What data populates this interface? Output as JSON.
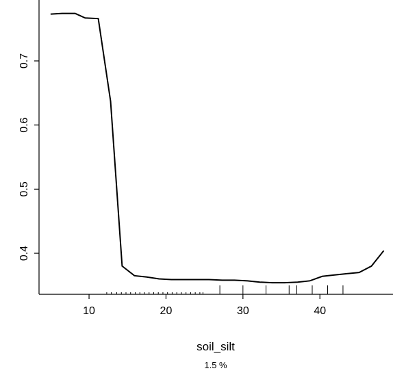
{
  "chart_data": {
    "type": "line",
    "xlabel": "soil_silt",
    "ylabel": "",
    "subtitle": "1.5 %",
    "xlim": [
      3.5,
      49.5
    ],
    "ylim": [
      0.336,
      0.795
    ],
    "x_ticks": [
      10,
      20,
      30,
      40
    ],
    "y_ticks": [
      0.4,
      0.5,
      0.6,
      0.7
    ],
    "y_tick_labels": [
      "0.4",
      "0.5",
      "0.6",
      "0.7"
    ],
    "x_tick_labels": [
      "10",
      "20",
      "30",
      "40"
    ],
    "series": [
      {
        "x": [
          5.0,
          6.5,
          8.2,
          9.5,
          11.2,
          12.8,
          14.3,
          15.9,
          17.5,
          19.1,
          20.7,
          22.4,
          24.0,
          25.6,
          27.3,
          28.9,
          30.6,
          32.2,
          33.8,
          35.4,
          37.1,
          38.7,
          40.3,
          41.8,
          43.4,
          45.1,
          46.7,
          48.3
        ],
        "y": [
          0.773,
          0.774,
          0.774,
          0.767,
          0.766,
          0.637,
          0.38,
          0.365,
          0.363,
          0.36,
          0.359,
          0.359,
          0.359,
          0.359,
          0.358,
          0.358,
          0.357,
          0.355,
          0.354,
          0.354,
          0.355,
          0.357,
          0.364,
          0.366,
          0.368,
          0.37,
          0.38,
          0.404
        ]
      }
    ],
    "rug": [
      12.3,
      12.9,
      13.6,
      14.2,
      14.8,
      15.4,
      16.0,
      16.6,
      17.2,
      17.8,
      18.4,
      19.0,
      19.6,
      20.2,
      20.8,
      21.4,
      22.0,
      22.6,
      23.2,
      23.8,
      24.4,
      24.8,
      27.0,
      30.0,
      33.0,
      36.0,
      37.0,
      39.0,
      41.0,
      43.0
    ],
    "grid": false,
    "box": "left-bottom-only"
  }
}
